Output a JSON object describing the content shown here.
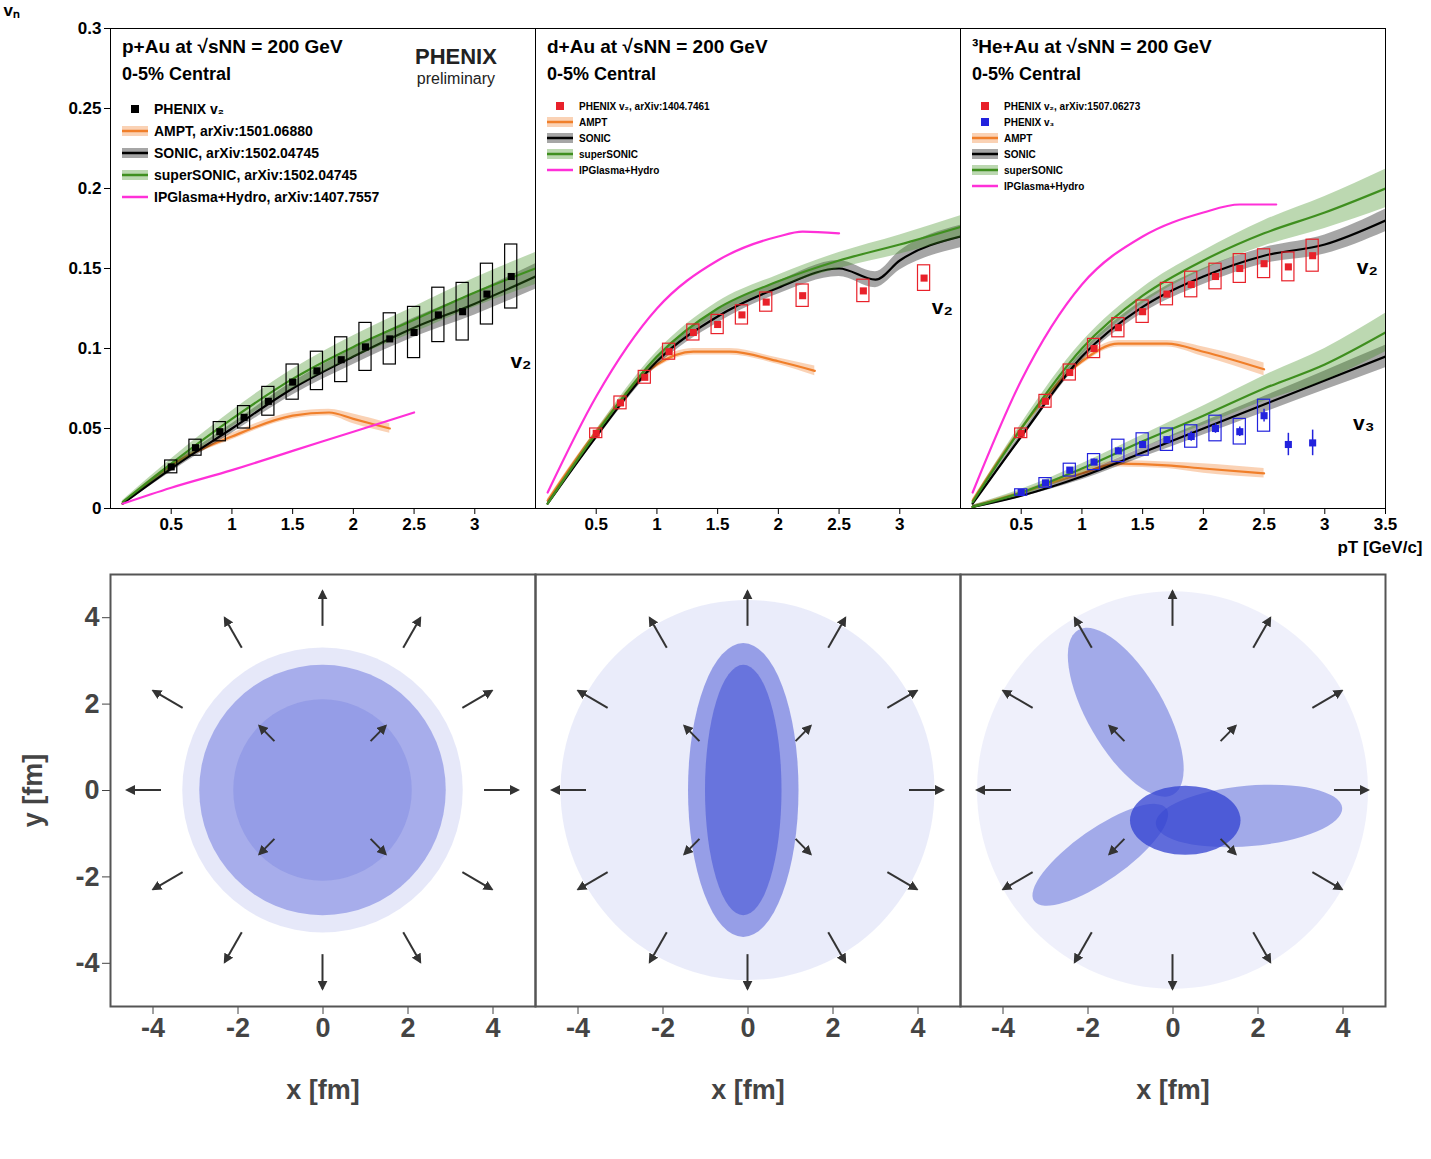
{
  "chart_data": [
    {
      "type": "scatter",
      "title": "p+Au at √sNN = 200 GeV",
      "subtitle": "0-5% Central",
      "y_label": "vₙ",
      "xlim": [
        0,
        3.5
      ],
      "ylim": [
        0,
        0.3
      ],
      "xticks": [
        0.5,
        1,
        1.5,
        2,
        2.5,
        3
      ],
      "yticks": [
        0,
        0.05,
        0.1,
        0.15,
        0.2,
        0.25,
        0.3
      ],
      "tick_labels": true,
      "legend": "top-left",
      "watermark": {
        "text": "PHENIX",
        "subtext": "preliminary"
      },
      "annotations": [
        {
          "text": "v₂",
          "x": 3.38,
          "y": 0.092
        }
      ],
      "series": [
        {
          "name": "PHENIX v₂",
          "type": "scatter",
          "marker": "square",
          "color": "#000000",
          "x": [
            0.5,
            0.7,
            0.9,
            1.1,
            1.3,
            1.5,
            1.7,
            1.9,
            2.1,
            2.3,
            2.5,
            2.7,
            2.9,
            3.1,
            3.3
          ],
          "values": [
            0.026,
            0.038,
            0.048,
            0.057,
            0.067,
            0.079,
            0.086,
            0.093,
            0.101,
            0.106,
            0.11,
            0.121,
            0.123,
            0.134,
            0.145
          ],
          "sys": [
            0.004,
            0.005,
            0.006,
            0.007,
            0.009,
            0.011,
            0.012,
            0.014,
            0.015,
            0.016,
            0.016,
            0.017,
            0.018,
            0.019,
            0.02
          ]
        },
        {
          "name": "AMPT, arXiv:1501.06880",
          "type": "line",
          "color": "#f07f2a",
          "x": [
            0.1,
            0.5,
            1,
            1.5,
            1.8,
            2,
            2.3
          ],
          "values": [
            0.003,
            0.027,
            0.045,
            0.058,
            0.06,
            0.056,
            0.05
          ],
          "band": [
            0.001,
            0.001,
            0.002,
            0.002,
            0.002,
            0.003,
            0.003
          ]
        },
        {
          "name": "SONIC, arXiv:1502.04745",
          "type": "line",
          "color": "#000000",
          "x": [
            0.1,
            0.5,
            1,
            1.5,
            2,
            2.5,
            3,
            3.5
          ],
          "values": [
            0.003,
            0.025,
            0.05,
            0.075,
            0.095,
            0.113,
            0.128,
            0.145
          ],
          "band": [
            0.001,
            0.002,
            0.003,
            0.004,
            0.005,
            0.006,
            0.007,
            0.008
          ]
        },
        {
          "name": "superSONIC, arXiv:1502.04745",
          "type": "line",
          "color": "#3f8f1f",
          "x": [
            0.1,
            0.5,
            1,
            1.5,
            2,
            2.5,
            3,
            3.5
          ],
          "values": [
            0.004,
            0.028,
            0.056,
            0.081,
            0.101,
            0.118,
            0.135,
            0.15
          ],
          "band": [
            0.001,
            0.003,
            0.005,
            0.006,
            0.007,
            0.008,
            0.009,
            0.01
          ]
        },
        {
          "name": "IPGlasma+Hydro, arXiv:1407.7557",
          "type": "line",
          "color": "#ff30d8",
          "x": [
            0.1,
            0.5,
            1,
            1.5,
            2,
            2.5
          ],
          "values": [
            0.003,
            0.013,
            0.024,
            0.036,
            0.048,
            0.06
          ]
        }
      ]
    },
    {
      "type": "scatter",
      "title": "d+Au at √sNN = 200 GeV",
      "subtitle": "0-5% Central",
      "xlim": [
        0,
        3.5
      ],
      "ylim": [
        0,
        0.3
      ],
      "xticks": [
        0.5,
        1,
        1.5,
        2,
        2.5,
        3
      ],
      "yticks": [
        0,
        0.05,
        0.1,
        0.15,
        0.2,
        0.25,
        0.3
      ],
      "tick_labels": "x",
      "legend": "top-left",
      "annotations": [
        {
          "text": "v₂",
          "x": 3.35,
          "y": 0.126
        }
      ],
      "series": [
        {
          "name": "PHENIX v₂, arXiv:1404.7461",
          "type": "scatter",
          "marker": "square",
          "color": "#e8212a",
          "x": [
            0.5,
            0.7,
            0.9,
            1.1,
            1.3,
            1.5,
            1.7,
            1.9,
            2.2,
            2.7,
            3.2
          ],
          "values": [
            0.047,
            0.066,
            0.082,
            0.098,
            0.11,
            0.115,
            0.121,
            0.129,
            0.133,
            0.136,
            0.144
          ],
          "sys": [
            0.003,
            0.004,
            0.004,
            0.005,
            0.005,
            0.006,
            0.006,
            0.006,
            0.007,
            0.007,
            0.008
          ]
        },
        {
          "name": "AMPT",
          "type": "line",
          "color": "#f07f2a",
          "x": [
            0.1,
            0.5,
            1,
            1.3,
            1.6,
            2,
            2.3
          ],
          "values": [
            0.005,
            0.048,
            0.09,
            0.098,
            0.098,
            0.092,
            0.086
          ],
          "band": [
            0.001,
            0.001,
            0.002,
            0.002,
            0.002,
            0.002,
            0.003
          ]
        },
        {
          "name": "SONIC",
          "type": "line",
          "color": "#000000",
          "x": [
            0.1,
            0.5,
            1,
            1.5,
            2,
            2.5,
            2.8,
            3,
            3.5
          ],
          "values": [
            0.003,
            0.045,
            0.092,
            0.12,
            0.138,
            0.15,
            0.143,
            0.155,
            0.17
          ],
          "band": [
            0.001,
            0.002,
            0.003,
            0.004,
            0.004,
            0.005,
            0.005,
            0.006,
            0.007
          ]
        },
        {
          "name": "superSONIC",
          "type": "line",
          "color": "#3f8f1f",
          "x": [
            0.1,
            0.5,
            1,
            1.5,
            2,
            2.5,
            3,
            3.5
          ],
          "values": [
            0.003,
            0.047,
            0.095,
            0.125,
            0.142,
            0.155,
            0.165,
            0.176
          ],
          "band": [
            0.001,
            0.002,
            0.003,
            0.004,
            0.004,
            0.005,
            0.006,
            0.007
          ]
        },
        {
          "name": "IPGlasma+Hydro",
          "type": "line",
          "color": "#ff30d8",
          "x": [
            0.1,
            0.5,
            1,
            1.5,
            2,
            2.2,
            2.5
          ],
          "values": [
            0.01,
            0.07,
            0.125,
            0.155,
            0.17,
            0.173,
            0.172
          ]
        }
      ]
    },
    {
      "type": "scatter",
      "title": "³He+Au at √sNN = 200 GeV",
      "subtitle": "0-5% Central",
      "x_label": "pT [GeV/c]",
      "xlim": [
        0,
        3.5
      ],
      "ylim": [
        0,
        0.3
      ],
      "xticks": [
        0.5,
        1,
        1.5,
        2,
        2.5,
        3,
        3.5
      ],
      "yticks": [
        0,
        0.05,
        0.1,
        0.15,
        0.2,
        0.25,
        0.3
      ],
      "tick_labels": "x",
      "legend": "top-left",
      "annotations": [
        {
          "text": "v₂",
          "x": 3.35,
          "y": 0.151
        },
        {
          "text": "v₃",
          "x": 3.32,
          "y": 0.053
        }
      ],
      "series": [
        {
          "name": "PHENIX v₂, arXiv:1507.06273",
          "type": "scatter",
          "marker": "square",
          "color": "#e8212a",
          "x": [
            0.5,
            0.7,
            0.9,
            1.1,
            1.3,
            1.5,
            1.7,
            1.9,
            2.1,
            2.3,
            2.5,
            2.7,
            2.9
          ],
          "values": [
            0.047,
            0.067,
            0.085,
            0.1,
            0.113,
            0.123,
            0.134,
            0.14,
            0.145,
            0.15,
            0.153,
            0.151,
            0.158
          ],
          "sys": [
            0.003,
            0.004,
            0.005,
            0.006,
            0.006,
            0.007,
            0.007,
            0.008,
            0.008,
            0.009,
            0.009,
            0.009,
            0.01
          ]
        },
        {
          "name": "PHENIX v₃",
          "type": "scatter",
          "marker": "square",
          "color": "#2222dd",
          "x": [
            0.5,
            0.7,
            0.9,
            1.1,
            1.3,
            1.5,
            1.7,
            1.9,
            2.1,
            2.3,
            2.5,
            2.7,
            2.9
          ],
          "values": [
            0.01,
            0.016,
            0.024,
            0.029,
            0.036,
            0.04,
            0.043,
            0.045,
            0.05,
            0.048,
            0.058,
            0.04,
            0.041
          ],
          "sys": [
            0.002,
            0.003,
            0.004,
            0.005,
            0.007,
            0.007,
            0.007,
            0.007,
            0.008,
            0.008,
            0.01,
            null,
            null
          ],
          "err": [
            0.001,
            0.001,
            0.001,
            0.002,
            0.002,
            0.002,
            0.002,
            0.003,
            0.003,
            0.003,
            0.004,
            0.007,
            0.008
          ]
        },
        {
          "name": "AMPT",
          "type": "line",
          "color": "#f07f2a",
          "x": [
            0.1,
            0.5,
            1,
            1.3,
            1.7,
            2,
            2.5
          ],
          "values": [
            0.005,
            0.05,
            0.092,
            0.103,
            0.103,
            0.098,
            0.087
          ],
          "band": [
            0.001,
            0.001,
            0.002,
            0.002,
            0.002,
            0.003,
            0.004
          ]
        },
        {
          "name": "SONIC",
          "type": "line",
          "color": "#000000",
          "x": [
            0.1,
            0.5,
            1,
            1.5,
            2,
            2.5,
            3,
            3.5
          ],
          "values": [
            0.003,
            0.045,
            0.095,
            0.126,
            0.145,
            0.158,
            0.165,
            0.18
          ],
          "band": [
            0.001,
            0.002,
            0.003,
            0.004,
            0.005,
            0.005,
            0.006,
            0.007
          ]
        },
        {
          "name": "superSONIC",
          "type": "line",
          "color": "#3f8f1f",
          "x": [
            0.1,
            0.5,
            1,
            1.5,
            2,
            2.5,
            3,
            3.5
          ],
          "values": [
            0.004,
            0.05,
            0.1,
            0.133,
            0.155,
            0.172,
            0.185,
            0.2
          ],
          "band": [
            0.001,
            0.003,
            0.004,
            0.005,
            0.006,
            0.008,
            0.01,
            0.012
          ]
        },
        {
          "name": "IPGlasma+Hydro",
          "type": "line",
          "color": "#ff30d8",
          "x": [
            0.1,
            0.5,
            1,
            1.5,
            2,
            2.3,
            2.6
          ],
          "values": [
            0.01,
            0.08,
            0.14,
            0.17,
            0.185,
            0.19,
            0.19
          ]
        },
        {
          "name": "AMPT",
          "type": "line",
          "color": "#f07f2a",
          "x": [
            0.1,
            0.5,
            1,
            1.3,
            1.7,
            2,
            2.5
          ],
          "values": [
            0.001,
            0.01,
            0.022,
            0.028,
            0.027,
            0.025,
            0.022
          ],
          "band": [
            0.001,
            0.001,
            0.002,
            0.002,
            0.002,
            0.003,
            0.003
          ]
        },
        {
          "name": "SONIC",
          "type": "line",
          "color": "#000000",
          "x": [
            0.1,
            0.5,
            1,
            1.5,
            2,
            2.5,
            3,
            3.5
          ],
          "values": [
            0.001,
            0.008,
            0.02,
            0.035,
            0.05,
            0.065,
            0.08,
            0.095
          ],
          "band": [
            0.001,
            0.001,
            0.002,
            0.003,
            0.004,
            0.005,
            0.006,
            0.007
          ]
        },
        {
          "name": "superSONIC",
          "type": "line",
          "color": "#3f8f1f",
          "x": [
            0.1,
            0.5,
            1,
            1.5,
            2,
            2.5,
            3,
            3.5
          ],
          "values": [
            0.001,
            0.01,
            0.025,
            0.042,
            0.058,
            0.075,
            0.09,
            0.11
          ],
          "band": [
            0.001,
            0.002,
            0.003,
            0.004,
            0.006,
            0.008,
            0.01,
            0.012
          ]
        }
      ]
    },
    {
      "type": "density",
      "marker": "circle",
      "x_label": "x [fm]",
      "y_label": "y [fm]",
      "xlim": [
        -5,
        5
      ],
      "ylim": [
        -5,
        5
      ],
      "xticks": [
        -4,
        -2,
        0,
        2,
        4
      ],
      "yticks": [
        -4,
        -2,
        0,
        2,
        4
      ],
      "tick_labels": true
    },
    {
      "type": "density",
      "marker": "ellipse",
      "x_label": "x [fm]",
      "xlim": [
        -5,
        5
      ],
      "ylim": [
        -5,
        5
      ],
      "xticks": [
        -4,
        -2,
        0,
        2,
        4
      ],
      "yticks": [
        -4,
        -2,
        0,
        2,
        4
      ],
      "tick_labels": "x"
    },
    {
      "type": "density",
      "marker": "triangle",
      "x_label": "x [fm]",
      "xlim": [
        -5,
        5
      ],
      "ylim": [
        -5,
        5
      ],
      "xticks": [
        -4,
        -2,
        0,
        2,
        4
      ],
      "yticks": [
        -4,
        -2,
        0,
        2,
        4
      ],
      "tick_labels": "x"
    }
  ]
}
